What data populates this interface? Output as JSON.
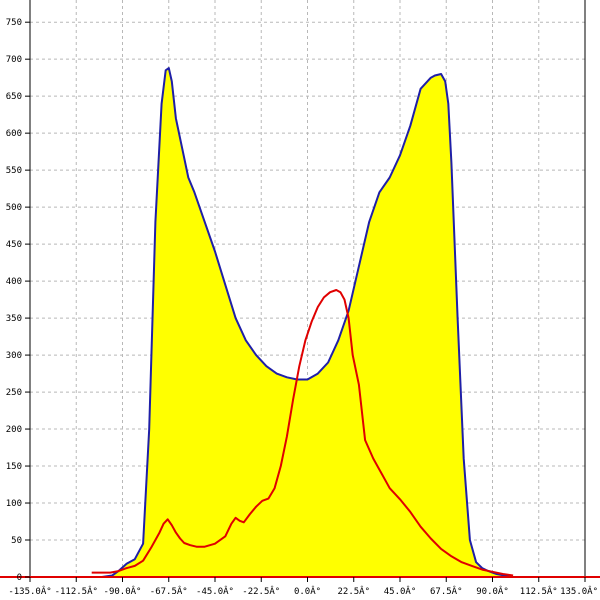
{
  "chart_data": {
    "type": "area",
    "title": "",
    "xlabel": "",
    "ylabel": "",
    "xlim": [
      -135,
      135
    ],
    "ylim": [
      0,
      780
    ],
    "grid": true,
    "x_ticks": [
      -135,
      -112.5,
      -90,
      -67.5,
      -45,
      -22.5,
      0,
      22.5,
      45,
      67.5,
      90,
      112.5,
      135
    ],
    "x_tick_labels": [
      "-135.0Â°",
      "-112.5Â°",
      "-90.0Â°",
      "-67.5Â°",
      "-45.0Â°",
      "-22.5Â°",
      "0.0Â°",
      "22.5Â°",
      "45.0Â°",
      "67.5Â°",
      "90.0Â°",
      "112.5Â°",
      "135.0Â°"
    ],
    "y_ticks": [
      0,
      50,
      100,
      150,
      200,
      250,
      300,
      350,
      400,
      450,
      500,
      550,
      600,
      650,
      700,
      750
    ],
    "y_tick_labels": [
      "0",
      "50",
      "100",
      "150",
      "200",
      "250",
      "300",
      "350",
      "400",
      "450",
      "500",
      "550",
      "600",
      "650",
      "700",
      "750"
    ],
    "series": [
      {
        "color": "#1f1fa8",
        "fill": "#ffff00",
        "x": [
          -100,
          -95,
          -92,
          -88,
          -84,
          -80,
          -77,
          -74,
          -71,
          -69,
          -67.5,
          -66,
          -64,
          -61,
          -58,
          -55,
          -50,
          -45,
          -40,
          -35,
          -30,
          -25,
          -20,
          -15,
          -10,
          -5,
          0,
          5,
          10,
          15,
          20,
          25,
          30,
          35,
          40,
          45,
          50,
          55,
          60,
          62,
          65,
          67,
          68.5,
          70,
          73,
          76,
          79,
          82,
          85,
          88,
          92,
          96,
          100
        ],
        "y": [
          0,
          2,
          8,
          18,
          24,
          45,
          200,
          480,
          640,
          685,
          688,
          670,
          620,
          580,
          540,
          520,
          480,
          440,
          395,
          350,
          320,
          300,
          285,
          275,
          270,
          267,
          267,
          275,
          290,
          320,
          360,
          420,
          480,
          520,
          540,
          570,
          610,
          660,
          675,
          678,
          680,
          670,
          640,
          560,
          350,
          160,
          50,
          20,
          12,
          8,
          4,
          2,
          0
        ]
      },
      {
        "color": "#e00000",
        "x": [
          -105,
          -100,
          -96,
          -92,
          -88,
          -84,
          -80,
          -76,
          -72,
          -70,
          -68,
          -66,
          -64,
          -62,
          -60,
          -57,
          -54,
          -50,
          -45,
          -40,
          -37,
          -35,
          -33,
          -31,
          -28,
          -25,
          -22,
          -19,
          -16,
          -13,
          -10,
          -7,
          -4,
          -1,
          2,
          5,
          8,
          11,
          14,
          16,
          18,
          20,
          22,
          25,
          28,
          32,
          36,
          40,
          45,
          50,
          55,
          60,
          65,
          70,
          75,
          80,
          85,
          90,
          95,
          100
        ],
        "y": [
          6,
          6,
          6,
          8,
          12,
          15,
          22,
          40,
          60,
          72,
          78,
          70,
          60,
          52,
          46,
          43,
          41,
          41,
          45,
          55,
          72,
          80,
          76,
          74,
          85,
          95,
          103,
          106,
          120,
          150,
          190,
          240,
          285,
          320,
          345,
          365,
          378,
          385,
          388,
          385,
          375,
          350,
          300,
          260,
          185,
          160,
          140,
          120,
          105,
          88,
          68,
          52,
          38,
          28,
          20,
          15,
          10,
          7,
          4,
          2
        ]
      }
    ]
  }
}
